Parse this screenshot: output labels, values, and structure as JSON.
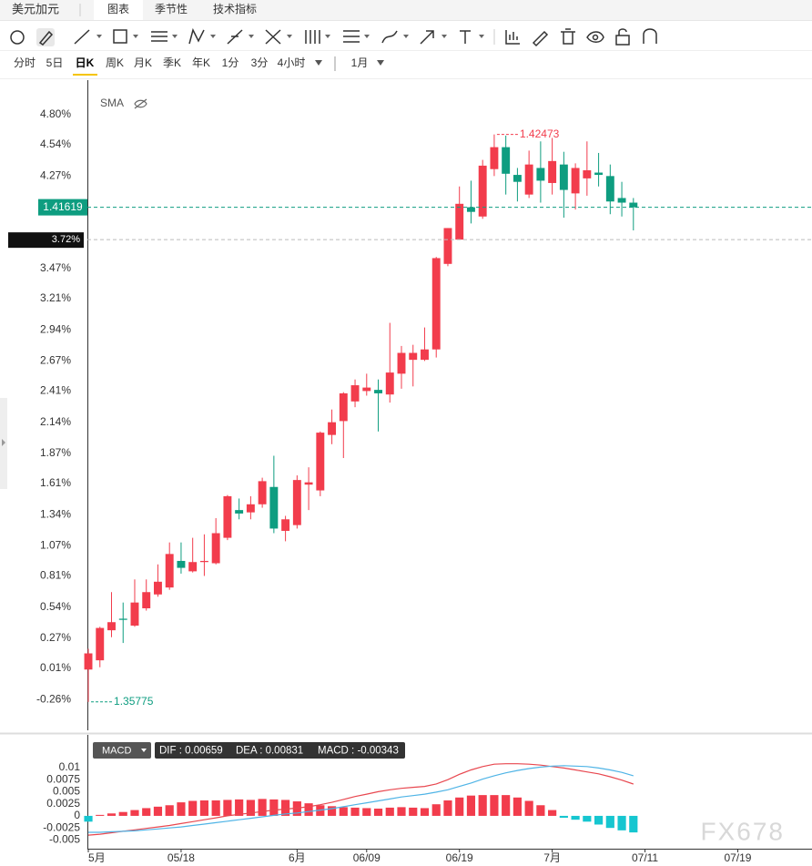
{
  "header": {
    "title": "美元加元",
    "tabs": [
      "图表",
      "季节性",
      "技术指标"
    ]
  },
  "periods": [
    "分时",
    "5日",
    "日K",
    "周K",
    "月K",
    "季K",
    "年K",
    "1分",
    "3分",
    "4小时",
    "1月"
  ],
  "indicator": "SMA",
  "watermark": "FX678",
  "chart_data": [
    {
      "type": "candlestick",
      "open": [
        0.0,
        0.08,
        0.34,
        0.44,
        0.38,
        0.53,
        0.65,
        0.71,
        0.94,
        0.85,
        0.93,
        0.92,
        1.14,
        1.38,
        1.36,
        1.43,
        1.58,
        1.2,
        1.25,
        1.6,
        1.55,
        2.03,
        2.15,
        2.32,
        2.41,
        2.42,
        2.38,
        2.56,
        2.68,
        2.68,
        2.77,
        3.51,
        3.72,
        4.0,
        3.92,
        4.33,
        4.52,
        4.28,
        4.11,
        4.34,
        4.21,
        4.37,
        4.12,
        4.25,
        4.3,
        4.27,
        4.08,
        4.04
      ],
      "high": [
        0.18,
        0.37,
        0.67,
        0.58,
        0.78,
        0.78,
        0.91,
        1.1,
        1.1,
        1.14,
        1.17,
        1.31,
        1.51,
        1.48,
        1.5,
        1.66,
        1.85,
        1.33,
        1.68,
        1.75,
        2.06,
        2.25,
        2.4,
        2.51,
        2.56,
        2.51,
        3.0,
        2.8,
        2.81,
        2.96,
        3.57,
        3.82,
        4.18,
        4.23,
        4.41,
        4.63,
        4.62,
        4.34,
        4.49,
        4.57,
        4.6,
        4.48,
        4.38,
        4.57,
        4.47,
        4.37,
        4.22,
        4.08
      ],
      "low": [
        -0.28,
        0.02,
        0.28,
        0.23,
        0.37,
        0.51,
        0.63,
        0.69,
        0.83,
        0.84,
        0.81,
        0.91,
        1.12,
        1.3,
        1.3,
        1.4,
        1.18,
        1.11,
        1.22,
        1.38,
        1.5,
        1.95,
        1.83,
        2.27,
        2.37,
        2.06,
        2.31,
        2.43,
        2.45,
        2.67,
        2.7,
        3.49,
        3.72,
        3.86,
        3.9,
        4.27,
        4.11,
        4.05,
        4.08,
        4.04,
        4.11,
        3.91,
        3.98,
        4.1,
        4.18,
        3.94,
        3.92,
        3.8
      ],
      "close": [
        0.14,
        0.36,
        0.41,
        0.43,
        0.58,
        0.67,
        0.76,
        1.0,
        0.88,
        0.93,
        0.94,
        1.18,
        1.5,
        1.35,
        1.43,
        1.63,
        1.22,
        1.3,
        1.64,
        1.62,
        2.05,
        2.14,
        2.39,
        2.46,
        2.44,
        2.39,
        2.57,
        2.74,
        2.74,
        2.77,
        3.56,
        3.82,
        4.03,
        3.96,
        4.36,
        4.52,
        4.29,
        4.22,
        4.37,
        4.23,
        4.4,
        4.15,
        4.34,
        4.32,
        4.28,
        4.05,
        4.04,
        4.0
      ],
      "up_color": "#f23c4c",
      "down_color": "#0e9d80",
      "ylim": [
        -0.51,
        5.1
      ],
      "yticks": [
        {
          "value": 4.8,
          "label": "4.80%"
        },
        {
          "value": 4.54,
          "label": "4.54%"
        },
        {
          "value": 4.27,
          "label": "4.27%"
        },
        {
          "value": 3.47,
          "label": "3.47%"
        },
        {
          "value": 3.21,
          "label": "3.21%"
        },
        {
          "value": 2.94,
          "label": "2.94%"
        },
        {
          "value": 2.67,
          "label": "2.67%"
        },
        {
          "value": 2.41,
          "label": "2.41%"
        },
        {
          "value": 2.14,
          "label": "2.14%"
        },
        {
          "value": 1.87,
          "label": "1.87%"
        },
        {
          "value": 1.61,
          "label": "1.61%"
        },
        {
          "value": 1.34,
          "label": "1.34%"
        },
        {
          "value": 1.07,
          "label": "1.07%"
        },
        {
          "value": 0.81,
          "label": "0.81%"
        },
        {
          "value": 0.54,
          "label": "0.54%"
        },
        {
          "value": 0.27,
          "label": "0.27%"
        },
        {
          "value": 0.01,
          "label": "0.01%"
        },
        {
          "value": -0.26,
          "label": "-0.26%"
        }
      ],
      "xlim": [
        -0.08,
        62.4
      ],
      "last_price_label": "1.41619",
      "crosshair": {
        "value": 3.72,
        "label": "3.72%"
      },
      "high_label": "1.42473",
      "low_label": "1.35775"
    },
    {
      "type": "macd",
      "title": "MACD",
      "legend_text": [
        "DIF : 0.00659",
        "DEA : 0.00831",
        "MACD : -0.00343"
      ],
      "histogram": {
        "up_color": "#f23c4c",
        "down_color": "#16c6d0",
        "values": [
          -0.0012,
          0.0002,
          0.0005,
          0.0008,
          0.0012,
          0.0016,
          0.0019,
          0.0022,
          0.0028,
          0.0031,
          0.0032,
          0.0032,
          0.0033,
          0.0034,
          0.0033,
          0.0035,
          0.0034,
          0.0033,
          0.003,
          0.0026,
          0.0022,
          0.002,
          0.0018,
          0.0017,
          0.0016,
          0.0015,
          0.0017,
          0.0018,
          0.0017,
          0.0016,
          0.0024,
          0.0032,
          0.0038,
          0.0042,
          0.0043,
          0.0043,
          0.0043,
          0.0038,
          0.0031,
          0.0022,
          0.0012,
          -0.0004,
          -0.0008,
          -0.0012,
          -0.0018,
          -0.0025,
          -0.003,
          -0.00343
        ]
      },
      "series": [
        {
          "color": "#e8474f",
          "values": [
            -0.004,
            -0.0038,
            -0.0035,
            -0.0032,
            -0.0029,
            -0.0026,
            -0.0023,
            -0.002,
            -0.0016,
            -0.0012,
            -0.0008,
            -0.0004,
            0.0,
            0.0003,
            0.0006,
            0.0009,
            0.0012,
            0.0014,
            0.0016,
            0.0019,
            0.0023,
            0.0028,
            0.0034,
            0.004,
            0.0045,
            0.005,
            0.0054,
            0.0057,
            0.0059,
            0.0061,
            0.0066,
            0.0075,
            0.0086,
            0.0095,
            0.0102,
            0.0107,
            0.0108,
            0.0108,
            0.0107,
            0.0105,
            0.0102,
            0.0099,
            0.0095,
            0.0091,
            0.0087,
            0.0081,
            0.0074,
            0.00659
          ]
        },
        {
          "color": "#4fb4e6",
          "values": [
            -0.0034,
            -0.0034,
            -0.0033,
            -0.0032,
            -0.0031,
            -0.0029,
            -0.0027,
            -0.0025,
            -0.0023,
            -0.002,
            -0.0017,
            -0.0014,
            -0.0011,
            -0.0008,
            -0.0005,
            -0.0002,
            0.0001,
            0.0004,
            0.0006,
            0.0009,
            0.0012,
            0.0015,
            0.0019,
            0.0023,
            0.0027,
            0.0031,
            0.0035,
            0.0039,
            0.0042,
            0.0045,
            0.0049,
            0.0054,
            0.0061,
            0.0068,
            0.0076,
            0.0083,
            0.0089,
            0.0094,
            0.0098,
            0.0101,
            0.0103,
            0.0104,
            0.0103,
            0.0102,
            0.0099,
            0.0095,
            0.009,
            0.00831
          ]
        }
      ],
      "ylim": [
        -0.0068,
        0.0113
      ],
      "yticks": [
        0.01,
        0.0075,
        0.005,
        0.0025,
        0,
        -0.0025,
        -0.005
      ],
      "xlim": [
        -0.08,
        62.4
      ],
      "xticks": [
        {
          "value": 0,
          "label": "5月"
        },
        {
          "value": 8,
          "label": "05/18"
        },
        {
          "value": 18,
          "label": "6月"
        },
        {
          "value": 24,
          "label": "06/09"
        },
        {
          "value": 32,
          "label": "06/19"
        },
        {
          "value": 40,
          "label": "7月"
        },
        {
          "value": 48,
          "label": "07/11"
        },
        {
          "value": 56,
          "label": "07/19"
        }
      ]
    }
  ]
}
